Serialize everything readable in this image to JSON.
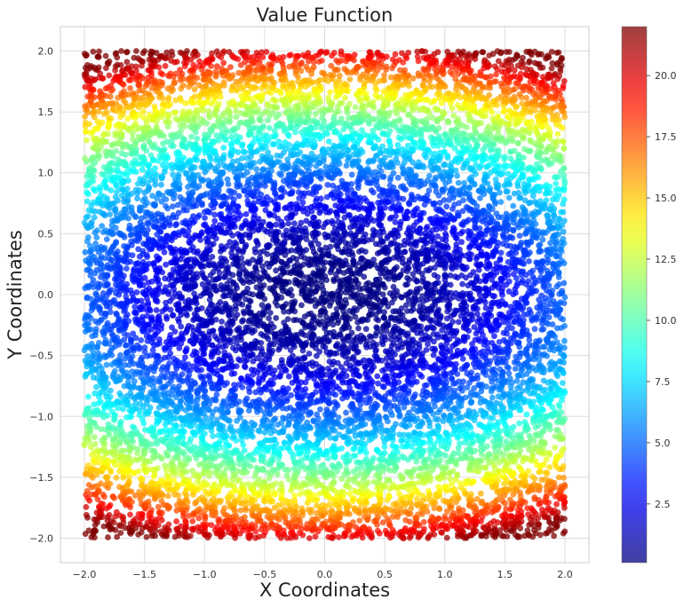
{
  "chart_data": {
    "type": "scatter",
    "title": "Value Function",
    "xlabel": "X Coordinates",
    "ylabel": "Y Coordinates",
    "xlim": [
      -2.2,
      2.2
    ],
    "ylim": [
      -2.2,
      2.2
    ],
    "x_ticks": [
      "−2.0",
      "−1.5",
      "−1.0",
      "−0.5",
      "0.0",
      "0.5",
      "1.0",
      "1.5",
      "2.0"
    ],
    "y_ticks": [
      "−2.0",
      "−1.5",
      "−1.0",
      "−0.5",
      "0.0",
      "0.5",
      "1.0",
      "1.5",
      "2.0"
    ],
    "grid": true,
    "points_domain": {
      "x": [
        -2.0,
        2.0
      ],
      "y": [
        -2.0,
        2.0
      ]
    },
    "approx_point_count": 12000,
    "value_model": {
      "description_of_color": "value grows with distance from origin, faster along y",
      "min": 0.1,
      "max": 22.0
    },
    "colormap": "jet",
    "colorbar": {
      "range": [
        0.1,
        22.0
      ],
      "ticks": [
        "2.5",
        "5.0",
        "7.5",
        "10.0",
        "12.5",
        "15.0",
        "17.5",
        "20.0"
      ],
      "tick_values": [
        2.5,
        5.0,
        7.5,
        10.0,
        12.5,
        15.0,
        17.5,
        20.0
      ]
    },
    "colors": {
      "grid": "#dcdcdc",
      "axes_border": "#cccccc",
      "background": "#ffffff"
    }
  }
}
